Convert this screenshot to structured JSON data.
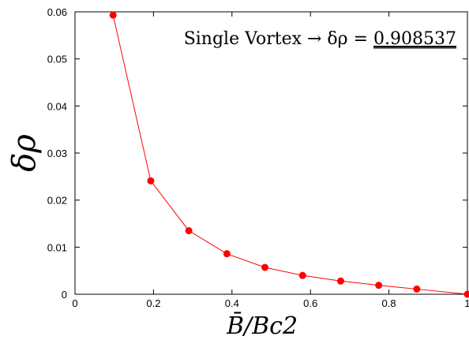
{
  "chart_data": {
    "type": "line",
    "title": "",
    "xlabel": "B̄/Bc2",
    "ylabel": "δρ",
    "xlim": [
      0,
      1
    ],
    "ylim": [
      0,
      0.06
    ],
    "xticks": [
      "0",
      "0.2",
      "0.4",
      "0.6",
      "0.8",
      "1"
    ],
    "yticks": [
      "0",
      "0.01",
      "0.02",
      "0.03",
      "0.04",
      "0.05",
      "0.06"
    ],
    "grid": false,
    "series": [
      {
        "color": "#ff0000",
        "x": [
          0.097,
          0.193,
          0.29,
          0.387,
          0.484,
          0.58,
          0.677,
          0.774,
          0.871,
          1.0
        ],
        "y": [
          0.0593,
          0.0241,
          0.0135,
          0.0086,
          0.0057,
          0.004,
          0.0028,
          0.0019,
          0.0011,
          0.0
        ]
      }
    ],
    "annotation": {
      "prefix": "Single Vortex → δρ = ",
      "value": "0.908537"
    }
  }
}
